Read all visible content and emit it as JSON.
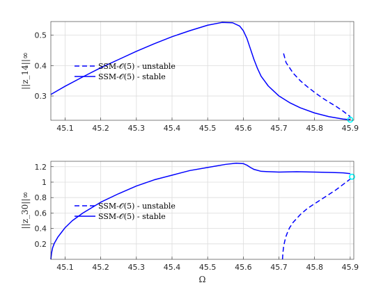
{
  "chart_data": [
    {
      "type": "line",
      "ylabel": "||z_14||∞",
      "xlabel": "",
      "xlim": [
        45.06,
        45.91
      ],
      "ylim": [
        0.22,
        0.545
      ],
      "xticks": [
        "45.1",
        "45.2",
        "45.3",
        "45.4",
        "45.5",
        "45.6",
        "45.7",
        "45.8",
        "45.9"
      ],
      "yticks": [
        "0.3",
        "0.4",
        "0.5"
      ],
      "grid": true,
      "legend_position": "center-left",
      "series": [
        {
          "name": "SSM-𝒪(5) - unstable",
          "style": "dashed",
          "color": "#0000ff",
          "x": [
            45.713,
            45.72,
            45.74,
            45.76,
            45.78,
            45.8,
            45.82,
            45.84,
            45.86,
            45.88,
            45.9
          ],
          "y": [
            0.44,
            0.41,
            0.375,
            0.35,
            0.33,
            0.312,
            0.295,
            0.28,
            0.266,
            0.25,
            0.232
          ]
        },
        {
          "name": "SSM-𝒪(5) - stable",
          "style": "solid",
          "color": "#0000ff",
          "x": [
            45.06,
            45.1,
            45.15,
            45.2,
            45.25,
            45.3,
            45.35,
            45.4,
            45.45,
            45.5,
            45.54,
            45.57,
            45.59,
            45.6,
            45.61,
            45.62,
            45.63,
            45.64,
            45.65,
            45.67,
            45.7,
            45.73,
            45.76,
            45.8,
            45.84,
            45.88,
            45.9
          ],
          "y": [
            0.305,
            0.332,
            0.363,
            0.393,
            0.42,
            0.447,
            0.472,
            0.495,
            0.515,
            0.533,
            0.542,
            0.541,
            0.53,
            0.515,
            0.49,
            0.455,
            0.42,
            0.39,
            0.365,
            0.333,
            0.3,
            0.278,
            0.261,
            0.244,
            0.232,
            0.224,
            0.222
          ]
        }
      ],
      "marker": {
        "x": 45.9,
        "y": 0.222,
        "color": "#00ffff"
      }
    },
    {
      "type": "line",
      "ylabel": "||z_30||∞",
      "xlabel": "Ω",
      "xlim": [
        45.06,
        45.91
      ],
      "ylim": [
        0,
        1.27
      ],
      "xticks": [
        "45.1",
        "45.2",
        "45.3",
        "45.4",
        "45.5",
        "45.6",
        "45.7",
        "45.8",
        "45.9"
      ],
      "yticks": [
        "0.2",
        "0.4",
        "0.6",
        "0.8",
        "1",
        "1.2"
      ],
      "grid": true,
      "legend_position": "center-left",
      "series": [
        {
          "name": "SSM-𝒪(5) - unstable",
          "style": "dashed",
          "color": "#0000ff",
          "x": [
            45.71,
            45.711,
            45.713,
            45.716,
            45.72,
            45.725,
            45.73,
            45.74,
            45.75,
            45.76,
            45.77,
            45.78,
            45.8,
            45.82,
            45.84,
            45.86,
            45.88,
            45.9
          ],
          "y": [
            0.0,
            0.08,
            0.16,
            0.23,
            0.3,
            0.36,
            0.41,
            0.48,
            0.53,
            0.58,
            0.62,
            0.66,
            0.72,
            0.78,
            0.84,
            0.9,
            0.97,
            1.04
          ]
        },
        {
          "name": "SSM-𝒪(5) - stable",
          "style": "solid",
          "color": "#0000ff",
          "x": [
            45.06,
            45.062,
            45.065,
            45.07,
            45.08,
            45.09,
            45.1,
            45.12,
            45.15,
            45.2,
            45.25,
            45.3,
            45.35,
            45.4,
            45.45,
            45.5,
            45.55,
            45.58,
            45.6,
            45.61,
            45.62,
            45.63,
            45.65,
            45.7,
            45.75,
            45.8,
            45.85,
            45.88,
            45.9
          ],
          "y": [
            0.0,
            0.08,
            0.15,
            0.21,
            0.29,
            0.35,
            0.41,
            0.5,
            0.6,
            0.74,
            0.85,
            0.95,
            1.03,
            1.09,
            1.15,
            1.19,
            1.23,
            1.245,
            1.24,
            1.22,
            1.19,
            1.165,
            1.14,
            1.13,
            1.135,
            1.13,
            1.125,
            1.12,
            1.11
          ]
        }
      ],
      "marker": {
        "x": 45.905,
        "y": 1.07,
        "color": "#00ffff"
      }
    }
  ]
}
